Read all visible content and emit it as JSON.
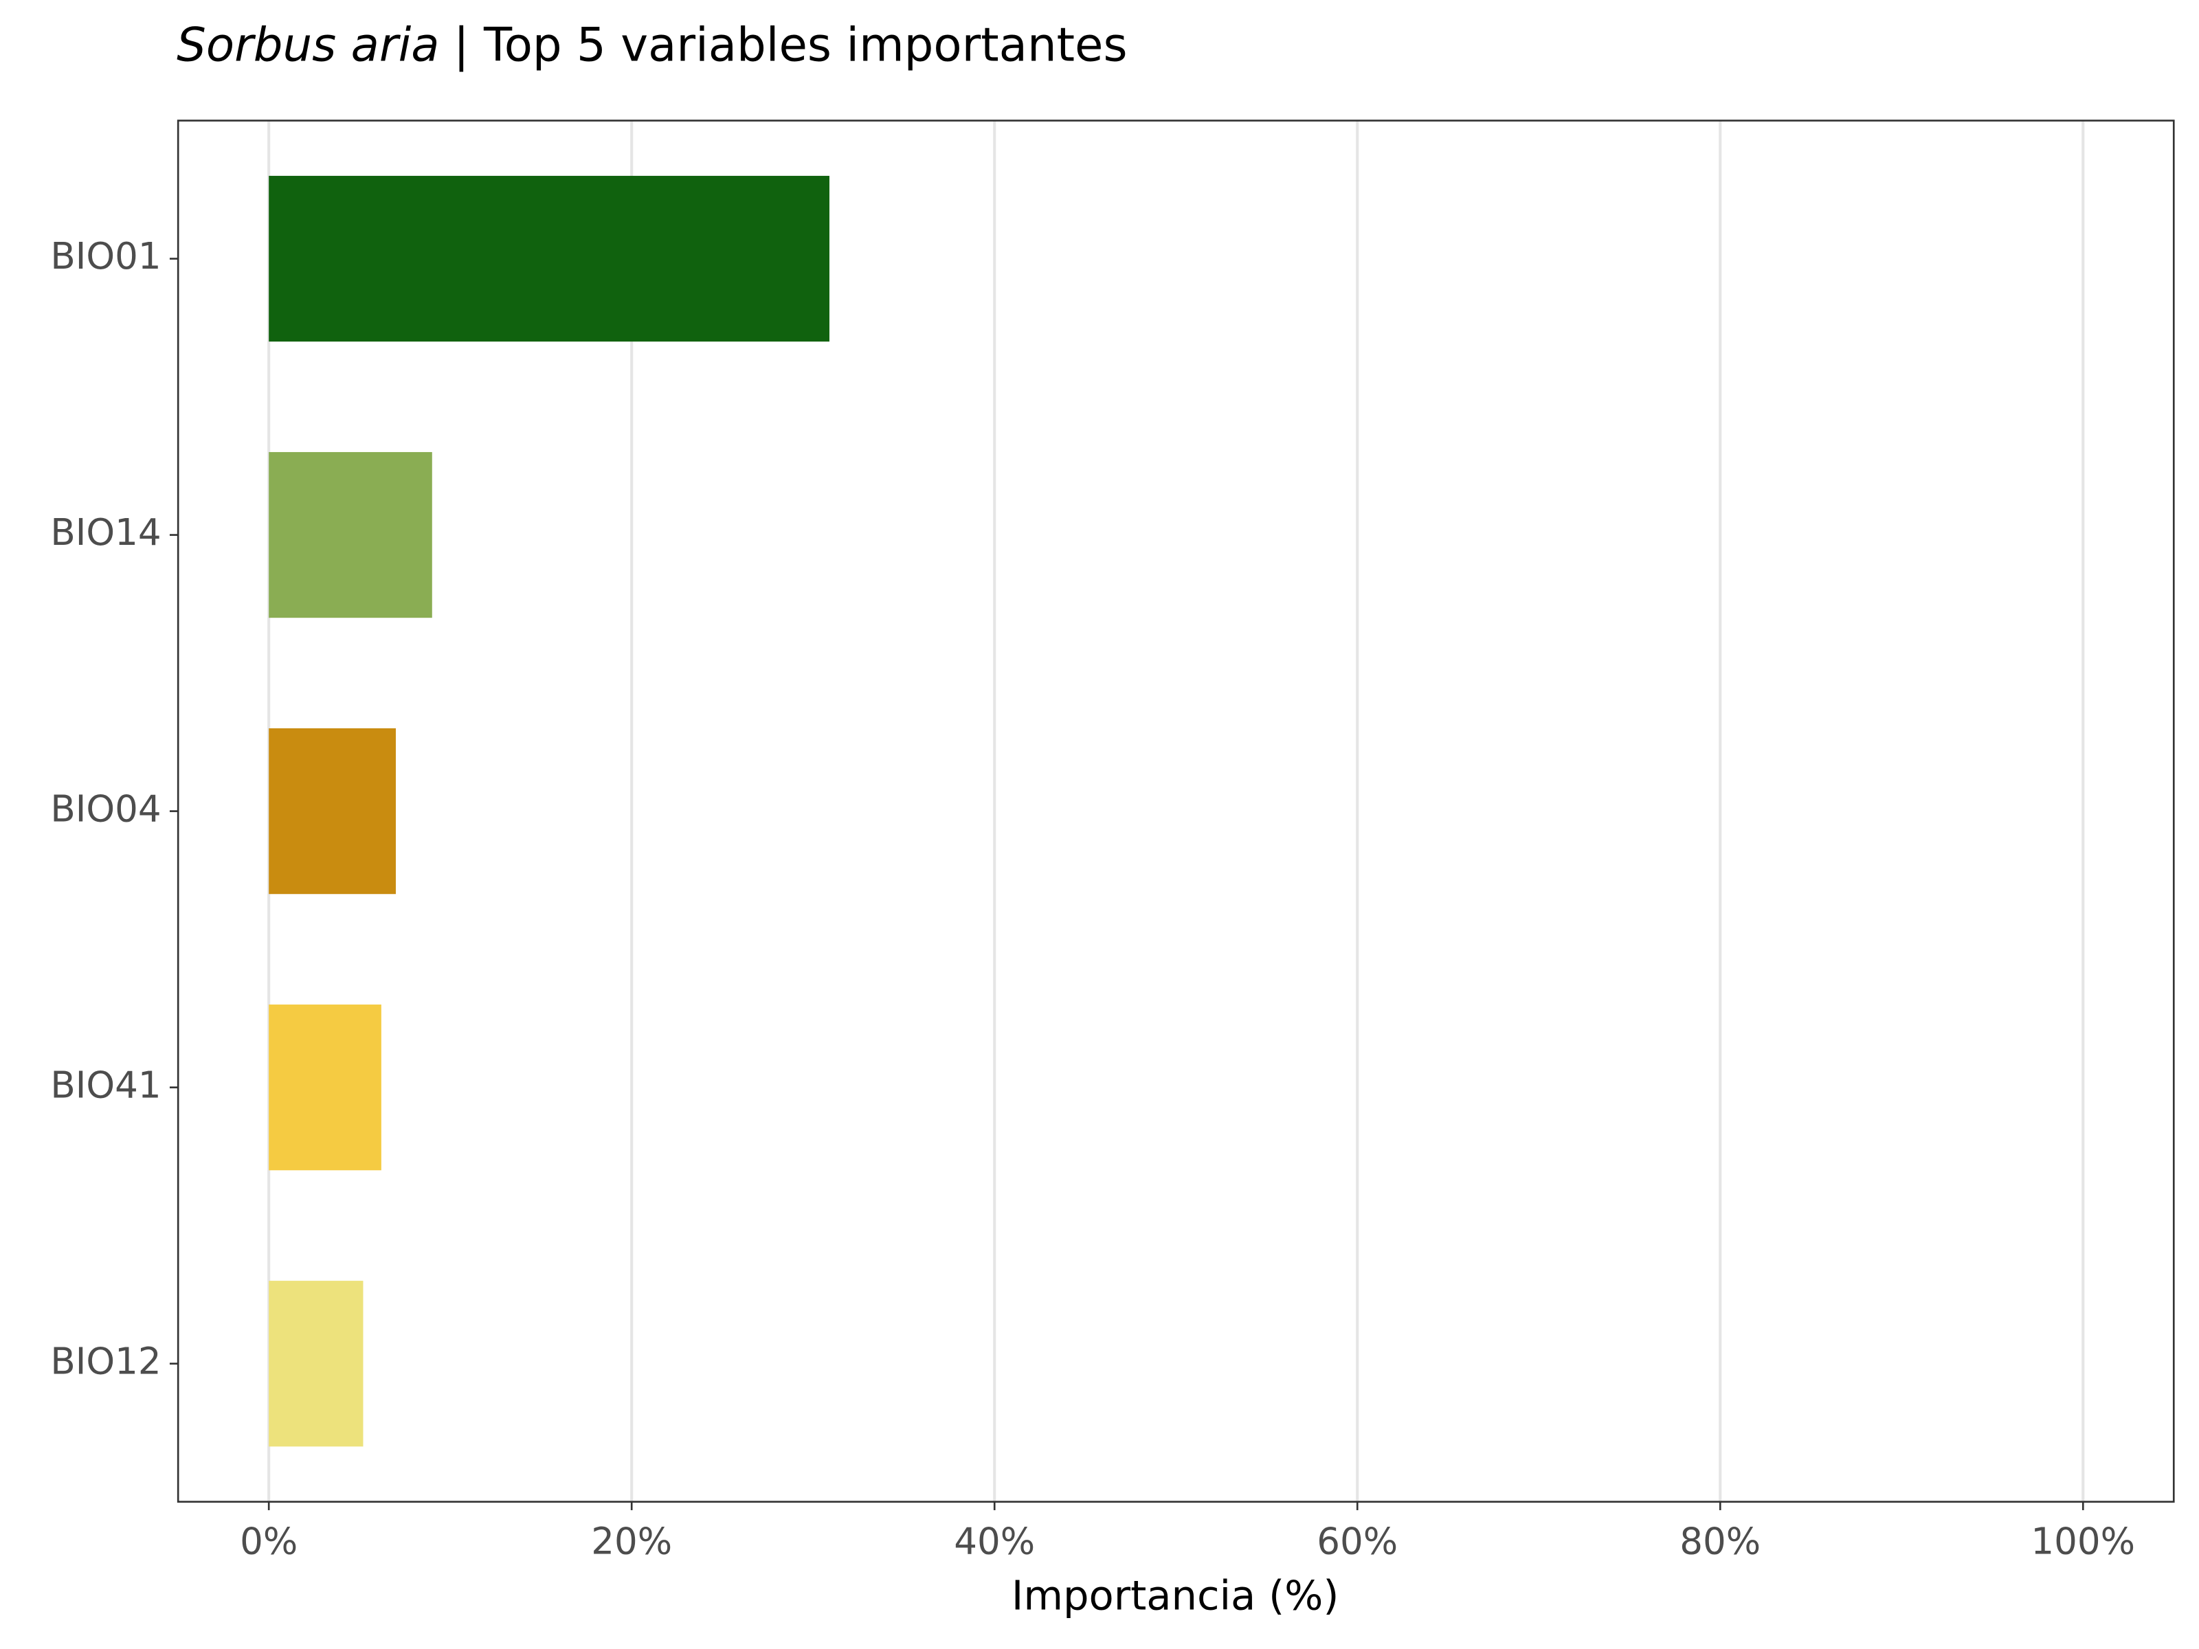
{
  "chart_data": {
    "type": "barh",
    "title_species": "Sorbus aria",
    "title": "| Top 5 variables importantes",
    "xlabel": "Importancia (%)",
    "categories": [
      "BIO01",
      "BIO14",
      "BIO04",
      "BIO41",
      "BIO12"
    ],
    "values": [
      30.9,
      9.0,
      7.0,
      6.2,
      5.2
    ],
    "colors": [
      "#10620e",
      "#8aad53",
      "#c98c10",
      "#f5cb42",
      "#ede27c"
    ],
    "xlim": [
      -5,
      105
    ],
    "xticks": [
      {
        "value": 0,
        "label": "0%"
      },
      {
        "value": 20,
        "label": "20%"
      },
      {
        "value": 40,
        "label": "40%"
      },
      {
        "value": 60,
        "label": "60%"
      },
      {
        "value": 80,
        "label": "80%"
      },
      {
        "value": 100,
        "label": "100%"
      }
    ],
    "grid": true
  }
}
